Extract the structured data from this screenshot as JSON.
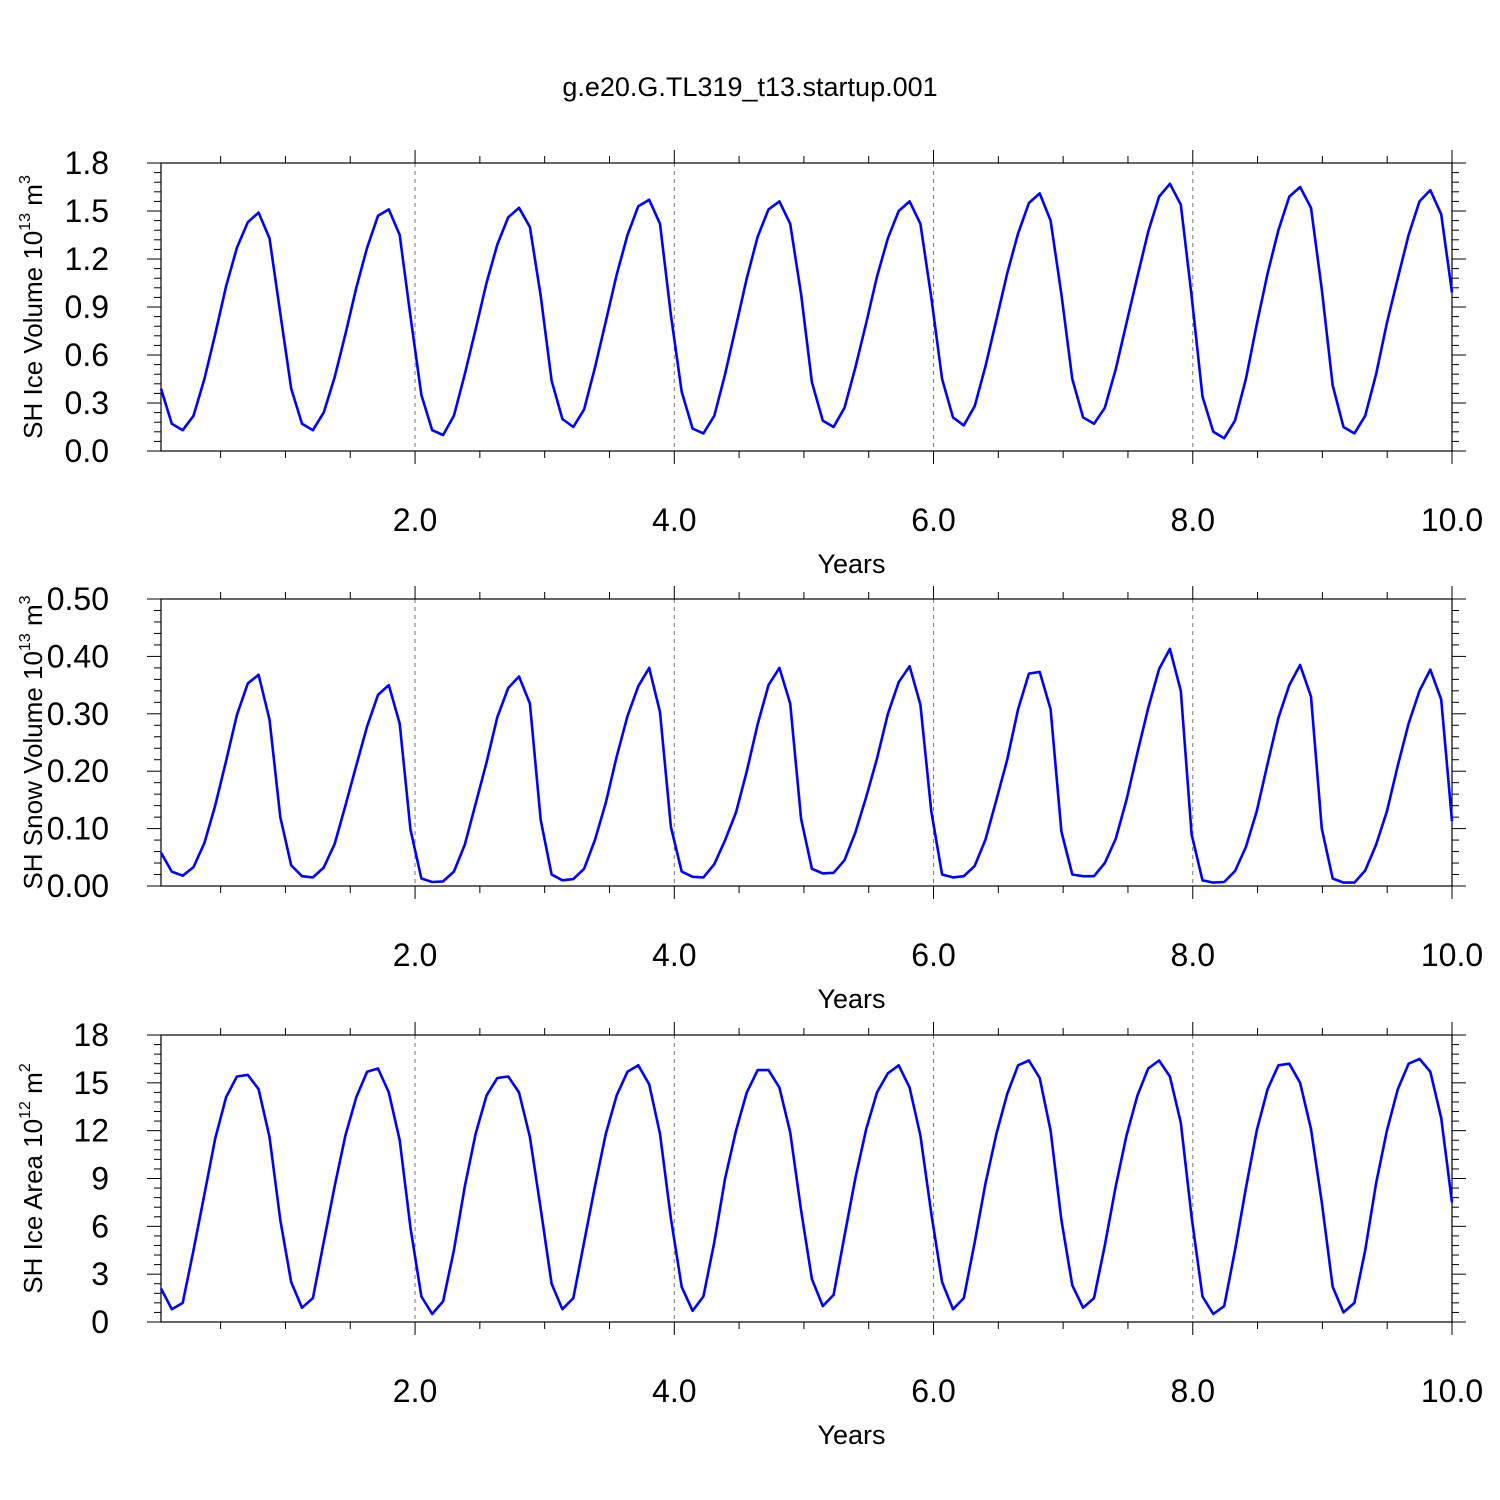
{
  "title": "g.e20.G.TL319_t13.startup.001",
  "colors": {
    "series": "#0000ff",
    "axis": "#000000",
    "refline": "#777777"
  },
  "chart_data": [
    {
      "type": "line",
      "ylabel": {
        "main": "SH Ice Volume 10",
        "exp": "13",
        "unit": " m",
        "unit_exp": "3"
      },
      "xlabel": "Years",
      "xlim": [
        0.04,
        10.0
      ],
      "ylim": [
        0.0,
        1.8
      ],
      "x_ticks": [
        "2.0",
        "4.0",
        "6.0",
        "8.0",
        "10.0"
      ],
      "y_ticks": [
        "0.0",
        "0.3",
        "0.6",
        "0.9",
        "1.2",
        "1.5",
        "1.8"
      ],
      "reference_lines_x": [
        2.0,
        4.0,
        6.0,
        8.0
      ],
      "grid": false,
      "values": [
        0.39,
        0.17,
        0.13,
        0.22,
        0.45,
        0.73,
        1.03,
        1.27,
        1.43,
        1.49,
        1.33,
        0.86,
        0.39,
        0.17,
        0.13,
        0.24,
        0.46,
        0.73,
        1.02,
        1.27,
        1.47,
        1.51,
        1.35,
        0.84,
        0.35,
        0.13,
        0.1,
        0.22,
        0.48,
        0.76,
        1.05,
        1.29,
        1.46,
        1.52,
        1.4,
        0.97,
        0.44,
        0.2,
        0.15,
        0.26,
        0.52,
        0.81,
        1.1,
        1.35,
        1.53,
        1.57,
        1.42,
        0.85,
        0.37,
        0.14,
        0.11,
        0.22,
        0.48,
        0.78,
        1.08,
        1.34,
        1.51,
        1.56,
        1.42,
        0.98,
        0.43,
        0.19,
        0.15,
        0.27,
        0.52,
        0.8,
        1.09,
        1.33,
        1.5,
        1.56,
        1.42,
        0.96,
        0.45,
        0.21,
        0.16,
        0.28,
        0.53,
        0.82,
        1.11,
        1.36,
        1.55,
        1.61,
        1.44,
        0.98,
        0.45,
        0.21,
        0.17,
        0.27,
        0.51,
        0.8,
        1.09,
        1.37,
        1.59,
        1.67,
        1.54,
        0.97,
        0.34,
        0.12,
        0.08,
        0.19,
        0.45,
        0.79,
        1.11,
        1.38,
        1.59,
        1.65,
        1.52,
        1.01,
        0.41,
        0.15,
        0.11,
        0.22,
        0.48,
        0.8,
        1.08,
        1.35,
        1.56,
        1.63,
        1.48,
        0.99
      ]
    },
    {
      "type": "line",
      "ylabel": {
        "main": "SH Snow Volume 10",
        "exp": "13",
        "unit": " m",
        "unit_exp": "3"
      },
      "xlabel": "Years",
      "xlim": [
        0.04,
        10.0
      ],
      "ylim": [
        0.0,
        0.5
      ],
      "x_ticks": [
        "2.0",
        "4.0",
        "6.0",
        "8.0",
        "10.0"
      ],
      "y_ticks": [
        "0.00",
        "0.10",
        "0.20",
        "0.30",
        "0.40",
        "0.50"
      ],
      "reference_lines_x": [
        2.0,
        4.0,
        6.0,
        8.0
      ],
      "grid": false,
      "values": [
        0.058,
        0.025,
        0.018,
        0.033,
        0.075,
        0.14,
        0.218,
        0.298,
        0.353,
        0.368,
        0.29,
        0.12,
        0.036,
        0.017,
        0.015,
        0.032,
        0.073,
        0.14,
        0.21,
        0.278,
        0.333,
        0.35,
        0.283,
        0.098,
        0.013,
        0.007,
        0.008,
        0.025,
        0.072,
        0.143,
        0.215,
        0.294,
        0.345,
        0.365,
        0.318,
        0.115,
        0.02,
        0.01,
        0.012,
        0.03,
        0.08,
        0.145,
        0.225,
        0.296,
        0.348,
        0.38,
        0.303,
        0.103,
        0.025,
        0.016,
        0.015,
        0.038,
        0.08,
        0.128,
        0.2,
        0.282,
        0.35,
        0.38,
        0.318,
        0.117,
        0.03,
        0.022,
        0.023,
        0.045,
        0.093,
        0.155,
        0.222,
        0.3,
        0.355,
        0.383,
        0.316,
        0.13,
        0.02,
        0.015,
        0.017,
        0.035,
        0.081,
        0.15,
        0.22,
        0.308,
        0.37,
        0.373,
        0.308,
        0.095,
        0.02,
        0.017,
        0.017,
        0.04,
        0.082,
        0.15,
        0.232,
        0.31,
        0.378,
        0.413,
        0.34,
        0.09,
        0.01,
        0.006,
        0.007,
        0.026,
        0.068,
        0.13,
        0.213,
        0.293,
        0.35,
        0.385,
        0.33,
        0.1,
        0.013,
        0.006,
        0.006,
        0.027,
        0.072,
        0.13,
        0.21,
        0.283,
        0.34,
        0.377,
        0.325,
        0.113
      ]
    },
    {
      "type": "line",
      "ylabel": {
        "main": "SH Ice Area 10",
        "exp": "12",
        "unit": " m",
        "unit_exp": "2"
      },
      "xlabel": "Years",
      "xlim": [
        0.04,
        10.0
      ],
      "ylim": [
        0,
        18
      ],
      "x_ticks": [
        "2.0",
        "4.0",
        "6.0",
        "8.0",
        "10.0"
      ],
      "y_ticks": [
        "0",
        "3",
        "6",
        "9",
        "12",
        "15",
        "18"
      ],
      "reference_lines_x": [
        2.0,
        4.0,
        6.0,
        8.0
      ],
      "grid": false,
      "values": [
        2.1,
        0.8,
        1.2,
        4.5,
        8.0,
        11.5,
        14.1,
        15.4,
        15.5,
        14.6,
        11.6,
        6.4,
        2.5,
        0.9,
        1.5,
        5.0,
        8.5,
        11.7,
        14.1,
        15.7,
        15.9,
        14.4,
        11.4,
        5.9,
        1.6,
        0.5,
        1.3,
        4.5,
        8.5,
        11.8,
        14.2,
        15.3,
        15.4,
        14.4,
        11.6,
        7.1,
        2.4,
        0.8,
        1.5,
        5.0,
        8.5,
        11.8,
        14.2,
        15.7,
        16.1,
        14.9,
        11.8,
        6.5,
        2.2,
        0.7,
        1.6,
        5.0,
        9.0,
        12.0,
        14.4,
        15.8,
        15.8,
        14.7,
        11.9,
        7.0,
        2.7,
        1.0,
        1.7,
        5.4,
        9.0,
        12.1,
        14.4,
        15.6,
        16.1,
        14.7,
        11.7,
        6.8,
        2.5,
        0.8,
        1.5,
        5.0,
        8.7,
        11.8,
        14.3,
        16.1,
        16.4,
        15.3,
        12.0,
        6.4,
        2.3,
        0.9,
        1.5,
        4.8,
        8.5,
        11.7,
        14.2,
        15.9,
        16.4,
        15.4,
        12.5,
        6.6,
        1.6,
        0.5,
        1.0,
        4.5,
        8.4,
        12.0,
        14.6,
        16.1,
        16.2,
        15.0,
        12.1,
        7.5,
        2.2,
        0.6,
        1.2,
        4.5,
        8.7,
        12.0,
        14.6,
        16.2,
        16.5,
        15.7,
        12.8,
        7.5
      ]
    }
  ]
}
